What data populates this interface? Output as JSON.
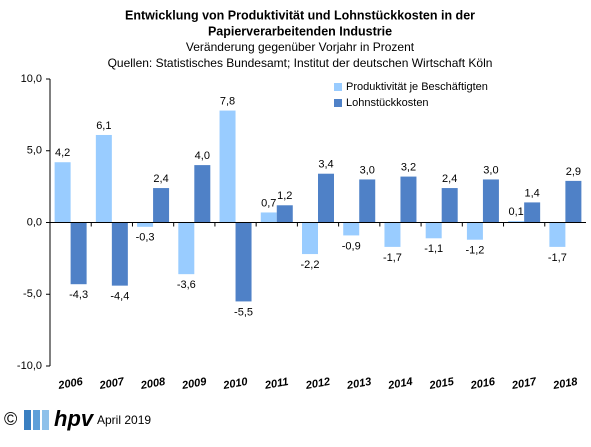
{
  "chart_data": {
    "type": "bar",
    "title": [
      "Entwicklung von Produktivität und Lohnstückkosten  in der",
      "Papierverarbeitenden Industrie"
    ],
    "subtitle": [
      "Veränderung  gegenüber  Vorjahr  in Prozent",
      "Quellen: Statistisches Bundesamt; Institut der deutschen Wirtschaft Köln"
    ],
    "categories": [
      "2006",
      "2007",
      "2008",
      "2009",
      "2010",
      "2011",
      "2012",
      "2013",
      "2014",
      "2015",
      "2016",
      "2017",
      "2018"
    ],
    "series": [
      {
        "name": "Produktivität je Beschäftigten",
        "color": "#99ccff",
        "values": [
          4.2,
          6.1,
          -0.3,
          -3.6,
          7.8,
          0.7,
          -2.2,
          -0.9,
          -1.7,
          -1.1,
          -1.2,
          0.1,
          -1.7
        ],
        "value_labels": [
          "4,2",
          "6,1",
          "-0,3",
          "-3,6",
          "7,8",
          "0,7",
          "-2,2",
          "-0,9",
          "-1,7",
          "-1,1",
          "-1,2",
          "0,1",
          "-1,7"
        ]
      },
      {
        "name": "Lohnstückkosten",
        "color": "#4f81c7",
        "values": [
          -4.3,
          -4.4,
          2.4,
          4.0,
          -5.5,
          1.2,
          3.4,
          3.0,
          3.2,
          2.4,
          3.0,
          1.4,
          2.9
        ],
        "value_labels": [
          "-4,3",
          "-4,4",
          "2,4",
          "4,0",
          "-5,5",
          "1,2",
          "3,4",
          "3,0",
          "3,2",
          "2,4",
          "3,0",
          "1,4",
          "2,9"
        ]
      }
    ],
    "ylim": [
      -10,
      10
    ],
    "yticks": [
      {
        "value": -10,
        "label": "-10,0"
      },
      {
        "value": -5,
        "label": "-5,0"
      },
      {
        "value": 0,
        "label": "0,0"
      },
      {
        "value": 5,
        "label": "5,0"
      },
      {
        "value": 10,
        "label": "10,0"
      }
    ],
    "grid": false,
    "legend": "upper right"
  },
  "footer": {
    "copyright": "©",
    "logo": "hpv",
    "date": "April 2019"
  }
}
